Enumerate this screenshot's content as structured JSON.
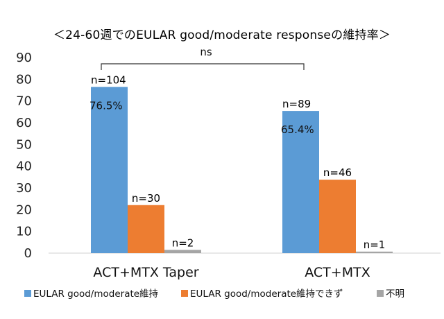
{
  "chart_data": {
    "type": "bar",
    "title": "＜24-60週でのEULAR good/moderate responseの維持率＞",
    "categories": [
      "ACT+MTX Taper",
      "ACT+MTX"
    ],
    "ylim": [
      0,
      90
    ],
    "yticks": [
      0,
      10,
      20,
      30,
      40,
      50,
      60,
      70,
      80,
      90
    ],
    "grid": false,
    "legend_position": "bottom",
    "series": [
      {
        "name": "EULAR good/moderate維持",
        "color": "#5B9BD5",
        "values": [
          76.5,
          65.4
        ],
        "labels": [
          "n=104",
          "n=89"
        ],
        "pct_labels": [
          "76.5%",
          "65.4%"
        ]
      },
      {
        "name": "EULAR good/moderate維持できず",
        "color": "#ED7D31",
        "values": [
          22.1,
          33.8
        ],
        "labels": [
          "n=30",
          "n=46"
        ]
      },
      {
        "name": "不明",
        "color": "#A5A5A5",
        "values": [
          1.5,
          0.7
        ],
        "labels": [
          "n=2",
          "n=1"
        ]
      }
    ],
    "annotation": {
      "text": "ns"
    }
  }
}
